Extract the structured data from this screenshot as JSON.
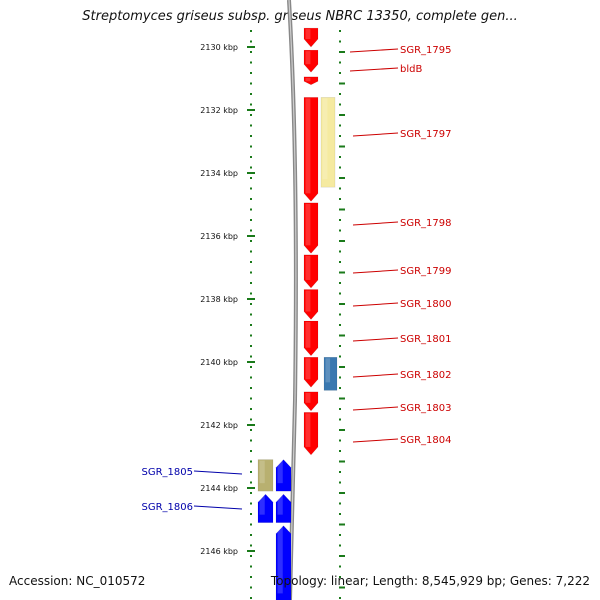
{
  "title": "Streptomyces griseus subsp. griseus NBRC 13350, complete gen...",
  "footer": {
    "accession": "Accession: NC_010572",
    "topology": "Topology: linear; Length: 8,545,929 bp; Genes: 7,222"
  },
  "map": {
    "axis_unit": "kbp",
    "visible_range_kbp": [
      2129.5,
      2147.5
    ],
    "scale_ticks_kbp": [
      2130,
      2132,
      2134,
      2136,
      2138,
      2140,
      2142,
      2144,
      2146
    ],
    "scale_labels": [
      "2130 kbp",
      "2132 kbp",
      "2134 kbp",
      "2136 kbp",
      "2138 kbp",
      "2140 kbp",
      "2142 kbp",
      "2144 kbp",
      "2146 kbp"
    ],
    "colors": {
      "forward_gene": "#ff0000",
      "reverse_gene": "#0000ff",
      "rna_feature": "#f5eaa0",
      "rna_feature_reverse": "#b8b070",
      "blue_feature": "#3a78b0",
      "backbone": "#888888",
      "scale_tick": "#1a7a1a",
      "forward_label": "#cc0000",
      "reverse_label": "#0000aa"
    },
    "features": [
      {
        "strand": "+",
        "start_kbp": 2129.4,
        "end_kbp": 2130.0,
        "kind": "gene",
        "label": null
      },
      {
        "strand": "+",
        "start_kbp": 2130.1,
        "end_kbp": 2130.8,
        "kind": "gene",
        "label": "SGR_1795"
      },
      {
        "strand": "+",
        "start_kbp": 2130.95,
        "end_kbp": 2131.2,
        "kind": "gene",
        "label": "bldB"
      },
      {
        "strand": "+",
        "start_kbp": 2131.6,
        "end_kbp": 2134.9,
        "kind": "gene",
        "label": "SGR_1797"
      },
      {
        "strand": "+",
        "start_kbp": 2131.6,
        "end_kbp": 2134.45,
        "kind": "rna",
        "label": null
      },
      {
        "strand": "+",
        "start_kbp": 2134.95,
        "end_kbp": 2136.55,
        "kind": "gene",
        "label": "SGR_1798"
      },
      {
        "strand": "+",
        "start_kbp": 2136.6,
        "end_kbp": 2137.65,
        "kind": "gene",
        "label": "SGR_1799"
      },
      {
        "strand": "+",
        "start_kbp": 2137.7,
        "end_kbp": 2138.65,
        "kind": "gene",
        "label": "SGR_1800"
      },
      {
        "strand": "+",
        "start_kbp": 2138.7,
        "end_kbp": 2139.8,
        "kind": "gene",
        "label": "SGR_1801"
      },
      {
        "strand": "+",
        "start_kbp": 2139.85,
        "end_kbp": 2140.8,
        "kind": "gene",
        "label": "SGR_1802"
      },
      {
        "strand": "+",
        "start_kbp": 2139.85,
        "end_kbp": 2140.9,
        "kind": "other",
        "label": null
      },
      {
        "strand": "+",
        "start_kbp": 2140.95,
        "end_kbp": 2141.55,
        "kind": "gene",
        "label": "SGR_1803"
      },
      {
        "strand": "+",
        "start_kbp": 2141.6,
        "end_kbp": 2142.95,
        "kind": "gene",
        "label": "SGR_1804"
      },
      {
        "strand": "-",
        "start_kbp": 2143.1,
        "end_kbp": 2144.1,
        "kind": "rna",
        "label": "SGR_1805"
      },
      {
        "strand": "-",
        "start_kbp": 2143.1,
        "end_kbp": 2144.1,
        "kind": "gene",
        "label": null
      },
      {
        "strand": "-",
        "start_kbp": 2144.2,
        "end_kbp": 2145.1,
        "kind": "gene",
        "label": "SGR_1806"
      },
      {
        "strand": "-",
        "start_kbp": 2144.2,
        "end_kbp": 2145.1,
        "kind": "gene",
        "label": null
      },
      {
        "strand": "-",
        "start_kbp": 2145.2,
        "end_kbp": 2147.6,
        "kind": "gene",
        "label": null
      }
    ]
  }
}
